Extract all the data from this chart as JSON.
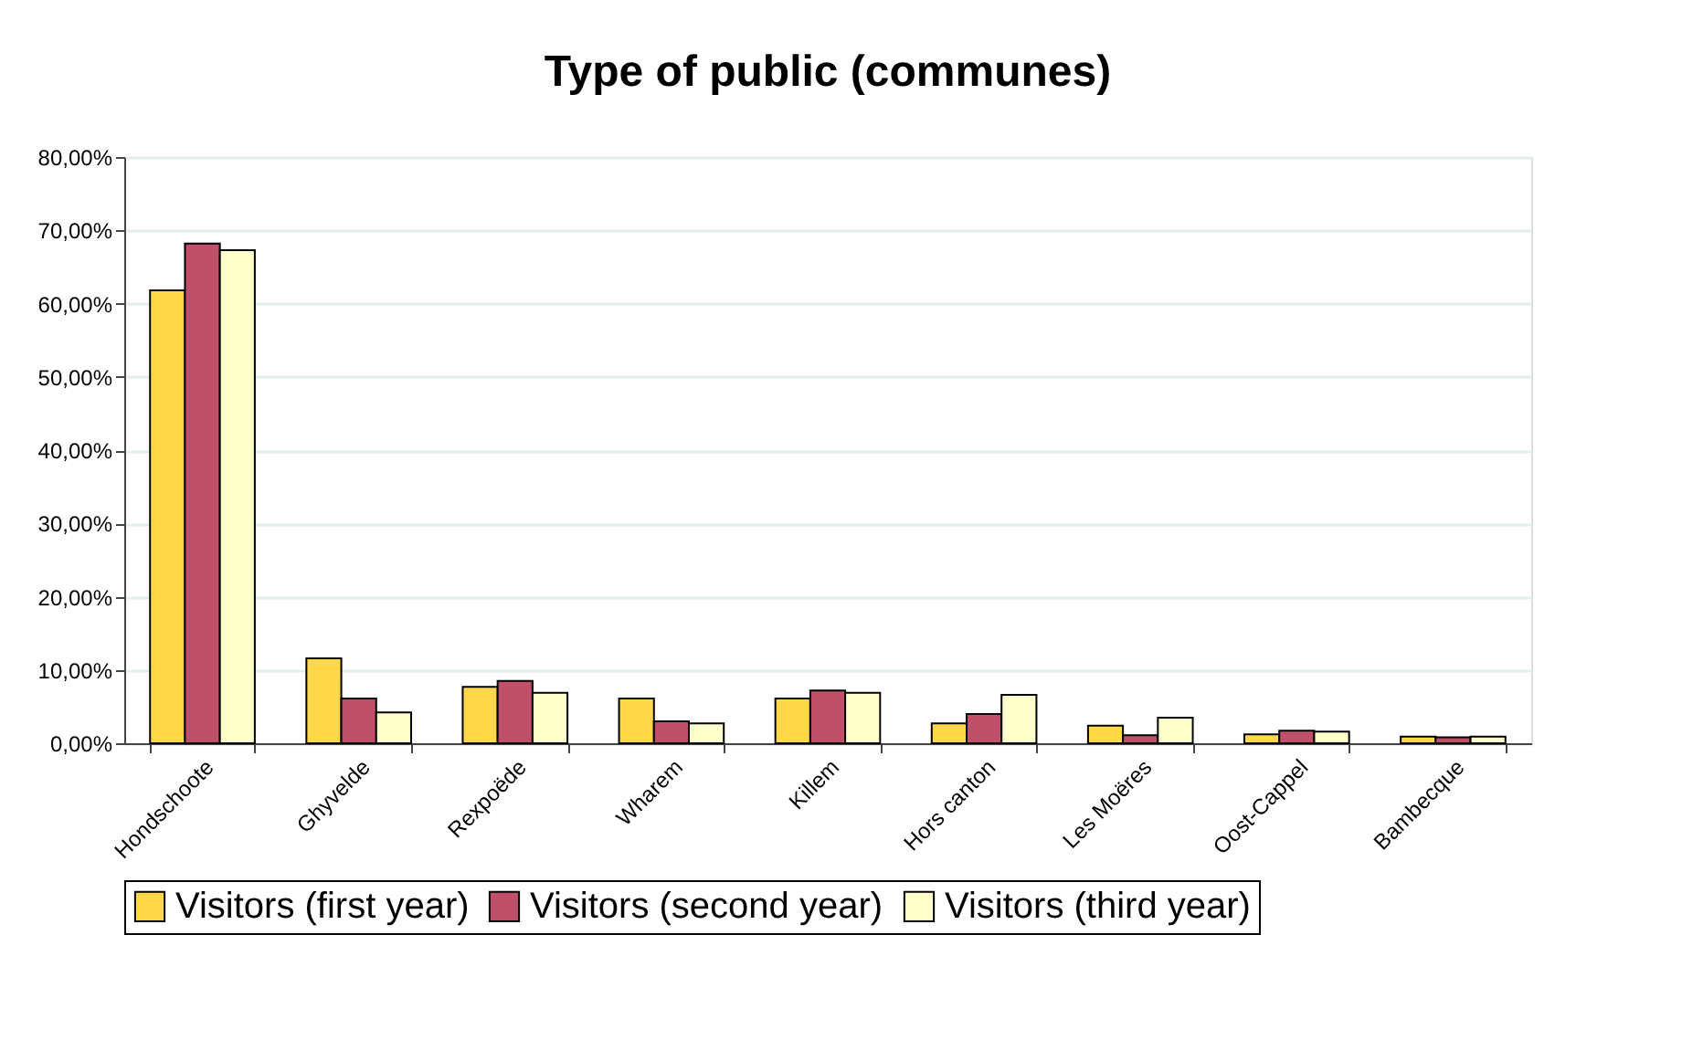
{
  "chart_data": {
    "type": "bar",
    "title": "Type of public (communes)",
    "categories": [
      "Hondschoote",
      "Ghyvelde",
      "Rexpoëde",
      "Wharem",
      "Killem",
      "Hors canton",
      "Les Moëres",
      "Oost-Cappel",
      "Bambecque"
    ],
    "series": [
      {
        "name": "Visitors (first year)",
        "color": "#ffd84a",
        "values": [
          61.8,
          11.6,
          7.7,
          6.1,
          6.1,
          2.7,
          2.4,
          1.2,
          0.9
        ]
      },
      {
        "name": "Visitors (second year)",
        "color": "#c0506a",
        "values": [
          68.2,
          6.1,
          8.5,
          3.0,
          7.2,
          4.0,
          1.1,
          1.7,
          0.8
        ]
      },
      {
        "name": "Visitors (third year)",
        "color": "#ffffcc",
        "values": [
          67.3,
          4.2,
          6.9,
          2.7,
          6.9,
          6.6,
          3.5,
          1.6,
          0.9
        ]
      }
    ],
    "ylim": [
      0,
      80
    ],
    "yticks": [
      {
        "value": 0,
        "label": "0,00%"
      },
      {
        "value": 10,
        "label": "10,00%"
      },
      {
        "value": 20,
        "label": "20,00%"
      },
      {
        "value": 30,
        "label": "30,00%"
      },
      {
        "value": 40,
        "label": "40,00%"
      },
      {
        "value": 50,
        "label": "50,00%"
      },
      {
        "value": 60,
        "label": "60,00%"
      },
      {
        "value": 70,
        "label": "70,00%"
      },
      {
        "value": 80,
        "label": "80,00%"
      }
    ],
    "grid": "y",
    "legend": "bottom"
  }
}
